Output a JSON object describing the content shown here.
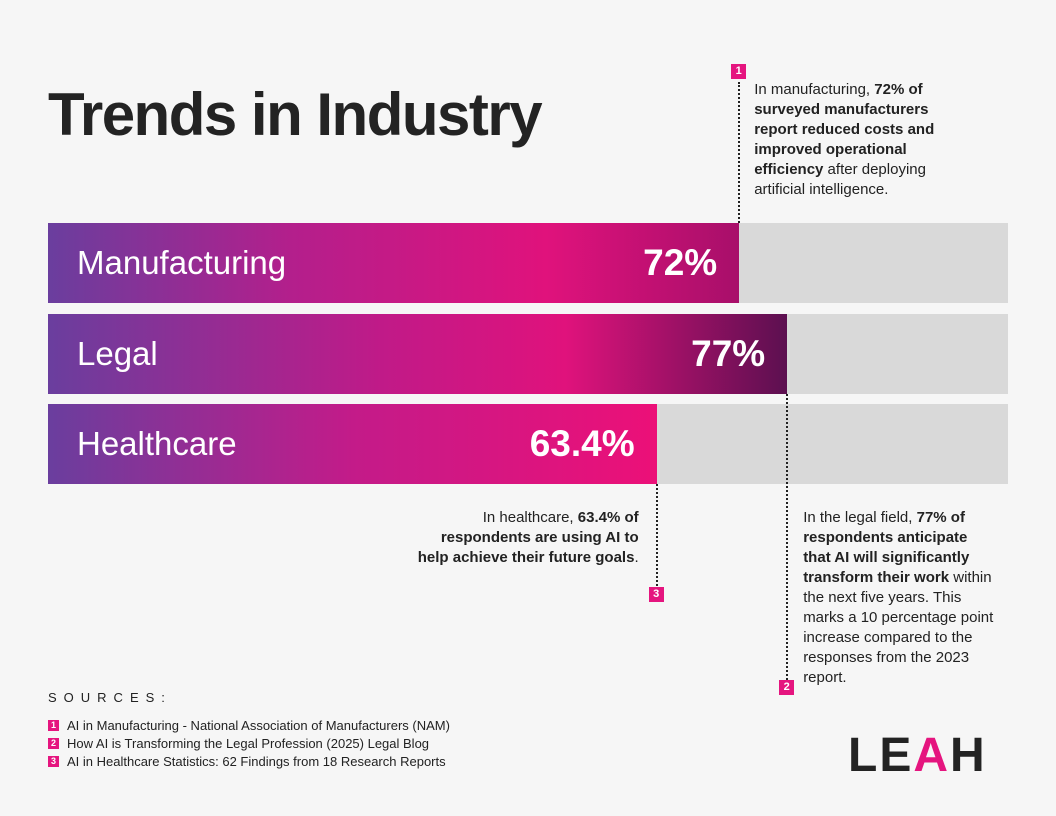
{
  "title": "Trends in Industry",
  "chart_data": {
    "type": "bar",
    "orientation": "horizontal",
    "categories": [
      "Manufacturing",
      "Legal",
      "Healthcare"
    ],
    "values": [
      72,
      77,
      63.4
    ],
    "value_labels": [
      "72%",
      "77%",
      "63.4%"
    ],
    "xlim": [
      0,
      100
    ],
    "grid": false,
    "colors": {
      "start": "#6a3e9e",
      "mid": "#e0127c",
      "track": "#d9d9d9"
    }
  },
  "annotations": [
    {
      "badge": "1",
      "parts": [
        [
          "In manufacturing, ",
          false
        ],
        [
          "72% of surveyed manufacturers report reduced costs and improved operational efficiency",
          true
        ],
        [
          " after deploying artificial intelligence.",
          false
        ]
      ]
    },
    {
      "badge": "2",
      "parts": [
        [
          "In the legal field, ",
          false
        ],
        [
          "77% of respondents anticipate that AI will significantly transform their work",
          true
        ],
        [
          " within the next five years. This marks a 10 percentage point increase compared to the responses from the 2023 report.",
          false
        ]
      ]
    },
    {
      "badge": "3",
      "parts": [
        [
          "In healthcare, ",
          false
        ],
        [
          "63.4% of respondents are using AI to help achieve their future goals",
          true
        ],
        [
          ".",
          false
        ]
      ]
    }
  ],
  "sources": {
    "title": "SOURCES:",
    "items": [
      {
        "badge": "1",
        "text": "AI in Manufacturing - National Association of Manufacturers (NAM)"
      },
      {
        "badge": "2",
        "text": "How AI is Transforming the Legal Profession (2025) Legal Blog"
      },
      {
        "badge": "3",
        "text": "AI in Healthcare Statistics: 62 Findings from 18 Research Reports"
      }
    ]
  },
  "logo": "LEAH",
  "accent": "#e5157f"
}
